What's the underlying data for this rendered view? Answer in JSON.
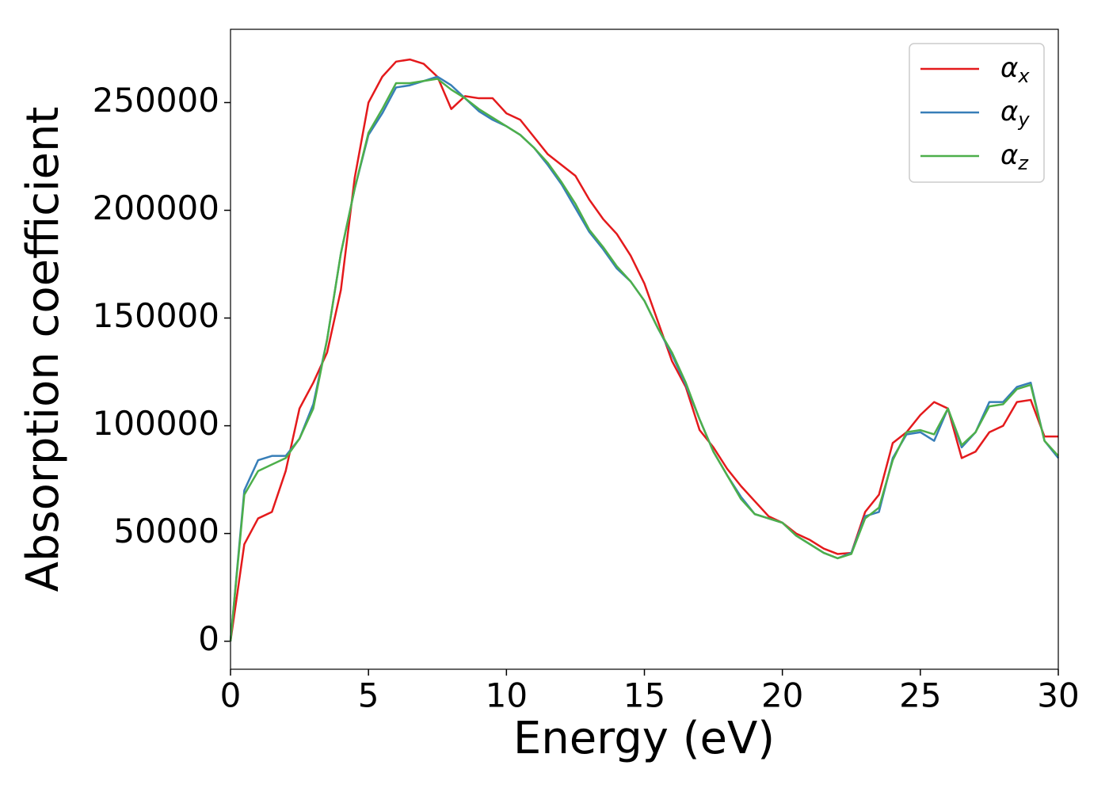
{
  "chart_data": {
    "type": "line",
    "x_label": "Energy (eV)",
    "y_label": "Absorption coefficient",
    "x": [
      0,
      0.5,
      1,
      1.5,
      2,
      2.5,
      3,
      3.5,
      4,
      4.5,
      5,
      5.5,
      6,
      6.5,
      7,
      7.5,
      8,
      8.5,
      9,
      9.5,
      10,
      10.5,
      11,
      11.5,
      12,
      12.5,
      13,
      13.5,
      14,
      14.5,
      15,
      15.5,
      16,
      16.5,
      17,
      17.5,
      18,
      18.5,
      19,
      19.5,
      20,
      20.5,
      21,
      21.5,
      22,
      22.5,
      23,
      23.5,
      24,
      24.5,
      25,
      25.5,
      26,
      26.5,
      27,
      27.5,
      28,
      28.5,
      29,
      29.5,
      30
    ],
    "series": [
      {
        "name": "αx",
        "color": "#e41a1c",
        "values": [
          0,
          45000,
          57000,
          60000,
          79000,
          108000,
          120000,
          134000,
          163000,
          215000,
          250000,
          262000,
          269000,
          270000,
          268000,
          262000,
          247000,
          253000,
          252000,
          252000,
          245000,
          242000,
          234000,
          226000,
          221000,
          216000,
          205000,
          196000,
          189000,
          179000,
          166000,
          148000,
          130000,
          118000,
          98000,
          90000,
          80000,
          72000,
          65000,
          58000,
          55000,
          50000,
          47000,
          43000,
          40500,
          41000,
          60000,
          68000,
          92000,
          97000,
          105000,
          111000,
          108000,
          85000,
          88000,
          97000,
          100000,
          111000,
          112000,
          95000,
          95000
        ]
      },
      {
        "name": "αy",
        "color": "#377eb8",
        "values": [
          0,
          70000,
          84000,
          86000,
          86000,
          94000,
          110000,
          140000,
          180000,
          210000,
          235000,
          245000,
          257000,
          258000,
          260000,
          262000,
          258000,
          252000,
          246000,
          242000,
          239000,
          235000,
          229000,
          221000,
          212000,
          201000,
          190000,
          182000,
          173000,
          167000,
          158000,
          145000,
          133000,
          119000,
          103000,
          88000,
          77000,
          67000,
          59000,
          57000,
          55000,
          49000,
          45000,
          41000,
          38500,
          41000,
          58000,
          60000,
          85000,
          96000,
          97000,
          93000,
          108000,
          90000,
          97000,
          111000,
          111000,
          118000,
          120000,
          93000,
          85000
        ]
      },
      {
        "name": "αz",
        "color": "#4daf4a",
        "values": [
          0,
          68000,
          79000,
          82000,
          85000,
          94000,
          108000,
          140000,
          180000,
          210000,
          236000,
          247000,
          259000,
          259000,
          260000,
          261000,
          256000,
          252000,
          247000,
          243000,
          239000,
          235000,
          229000,
          222000,
          213000,
          203000,
          191000,
          183000,
          174000,
          167000,
          158000,
          145000,
          134000,
          120000,
          103000,
          88000,
          77000,
          66000,
          59000,
          57000,
          55000,
          49000,
          45000,
          41000,
          38500,
          40500,
          57000,
          62000,
          84000,
          97000,
          98000,
          96000,
          108000,
          91000,
          97000,
          109000,
          110000,
          117000,
          119000,
          93000,
          86000
        ]
      }
    ],
    "xlim": [
      0,
      30
    ],
    "xticks": [
      0,
      5,
      10,
      15,
      20,
      25,
      30
    ],
    "ylim": [
      -13000,
      284000
    ],
    "yticks": [
      0,
      50000,
      100000,
      150000,
      200000,
      250000
    ],
    "legend": "upper right"
  }
}
